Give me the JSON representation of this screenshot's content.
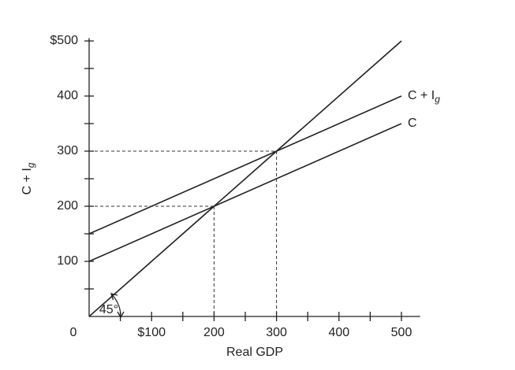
{
  "chart_data": {
    "type": "line",
    "x": [
      0,
      500
    ],
    "series": [
      {
        "name": "C + Ig",
        "color": "#222222",
        "values": [
          150,
          400
        ]
      },
      {
        "name": "C",
        "color": "#222222",
        "values": [
          100,
          350
        ]
      },
      {
        "color": "#222222",
        "values": [
          0,
          500
        ]
      }
    ],
    "xlabel": "Real GDP",
    "ylabel": "C + Ig",
    "xlim": [
      0,
      530
    ],
    "ylim": [
      0,
      505
    ],
    "xticks": [
      0,
      {
        "value": 100,
        "label": "$100"
      },
      200,
      300,
      400,
      500
    ],
    "yticks": [
      100,
      200,
      300,
      400,
      {
        "value": 500,
        "label": "$500"
      }
    ],
    "xminor": [
      50,
      150,
      250,
      350,
      450
    ],
    "yminor": [
      50,
      150,
      250,
      350,
      450
    ],
    "guides": [
      {
        "x": 200,
        "y": 200
      },
      {
        "x": 300,
        "y": 300
      }
    ],
    "annotation": "45°",
    "subscript_last": true
  }
}
